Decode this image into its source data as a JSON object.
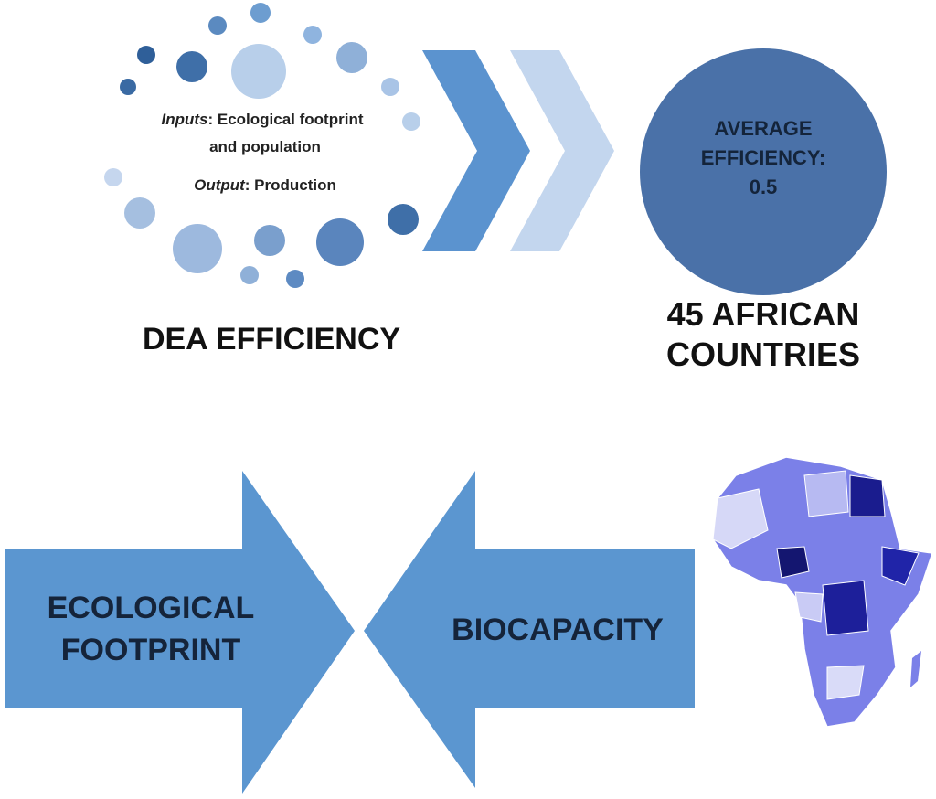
{
  "dea": {
    "inputs_label": "Inputs",
    "inputs_text": ": Ecological footprint",
    "inputs_text_2": "and population",
    "output_label": "Output",
    "output_text": ": Production",
    "title": "DEA EFFICIENCY"
  },
  "result": {
    "line1": "AVERAGE",
    "line2": "EFFICIENCY:",
    "value": 0.5,
    "caption_1": "45 AFRICAN",
    "caption_2": "COUNTRIES"
  },
  "arrows": {
    "left_1": "ECOLOGICAL",
    "left_2": "FOOTPRINT",
    "right": "BIOCAPACITY"
  }
}
